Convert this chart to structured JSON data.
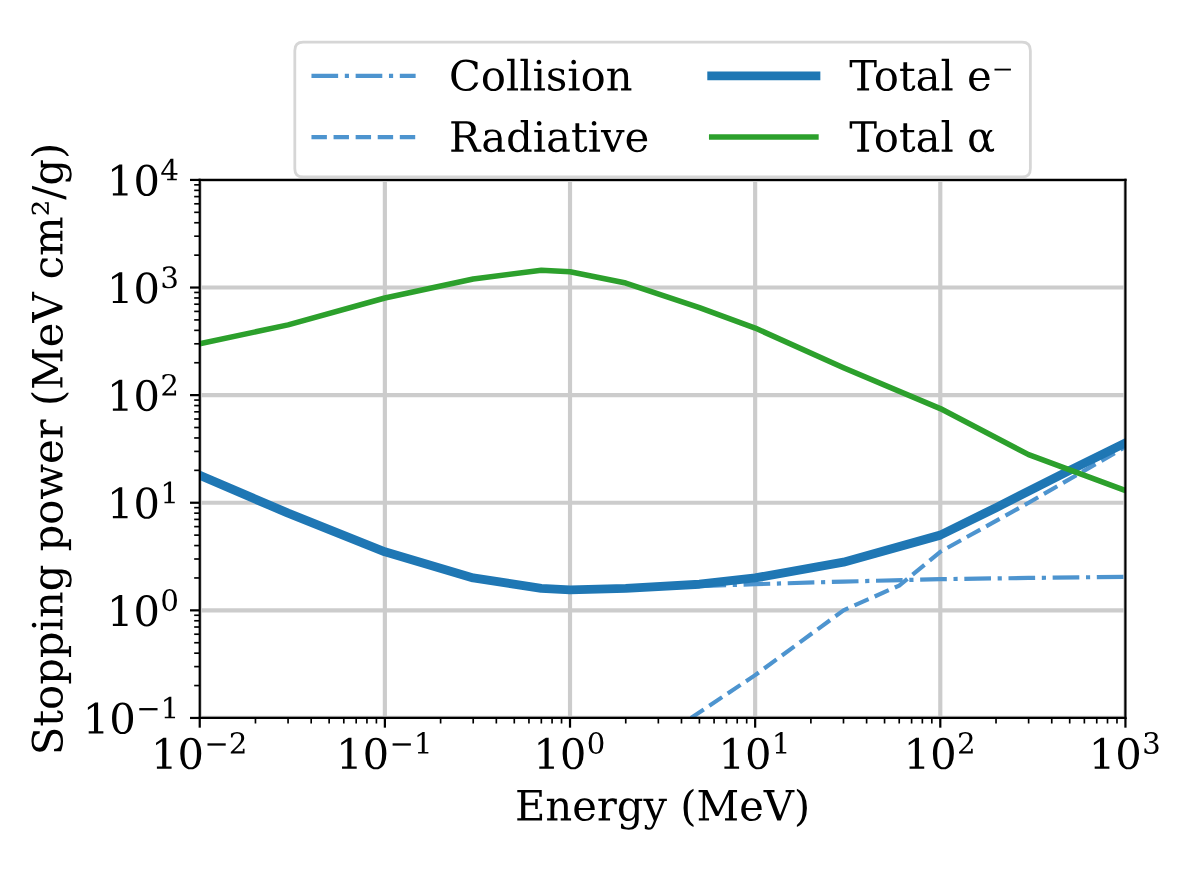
{
  "chart_data": {
    "type": "line",
    "xlabel": "Energy (MeV)",
    "ylabel": "Stopping power (MeV cm²/g)",
    "log": "xy",
    "grid": true,
    "legend": "top",
    "marker": "none",
    "xlim": [
      0.01,
      1000
    ],
    "ylim": [
      0.1,
      10000
    ],
    "xticks": [
      {
        "value": 0.01,
        "label": "10$^{−2}$"
      },
      {
        "value": 0.1,
        "label": "10$^{−1}$"
      },
      {
        "value": 1,
        "label": "10$^{0}$"
      },
      {
        "value": 10,
        "label": "10$^{1}$"
      },
      {
        "value": 100,
        "label": "10$^{2}$"
      },
      {
        "value": 1000,
        "label": "10$^{3}$"
      }
    ],
    "yticks": [
      {
        "value": 0.1,
        "label": "10$^{−1}$"
      },
      {
        "value": 1,
        "label": "10$^{0}$"
      },
      {
        "value": 10,
        "label": "10$^{1}$"
      },
      {
        "value": 100,
        "label": "10$^{2}$"
      },
      {
        "value": 1000,
        "label": "10$^{3}$"
      },
      {
        "value": 10000,
        "label": "10$^{4}$"
      }
    ],
    "series": [
      {
        "name": "Collision",
        "color": "#4d94cf",
        "line_style": "dashdot",
        "x": [
          5,
          10,
          30,
          100,
          300,
          1000
        ],
        "values": [
          1.68,
          1.75,
          1.85,
          1.95,
          2.0,
          2.05
        ]
      },
      {
        "name": "Radiative",
        "color": "#4d94cf",
        "line_style": "dashed",
        "x": [
          4.5,
          10,
          30,
          60,
          100,
          300,
          1000
        ],
        "values": [
          0.1,
          0.25,
          1.0,
          1.7,
          3.5,
          10,
          33
        ]
      },
      {
        "name": "Total e⁻",
        "color": "#1f77b4",
        "line_style": "solid",
        "x": [
          0.01,
          0.03,
          0.1,
          0.3,
          0.7,
          1,
          2,
          5,
          10,
          30,
          100,
          200,
          500,
          1000
        ],
        "values": [
          18,
          8,
          3.5,
          2.0,
          1.6,
          1.55,
          1.6,
          1.75,
          2.0,
          2.8,
          5,
          9,
          20,
          36
        ]
      },
      {
        "name": "Total α",
        "color": "#2ca02c",
        "line_style": "solid",
        "x": [
          0.01,
          0.03,
          0.1,
          0.3,
          0.7,
          1,
          2,
          5,
          10,
          30,
          100,
          300,
          1000
        ],
        "values": [
          300,
          450,
          800,
          1200,
          1450,
          1400,
          1100,
          650,
          420,
          180,
          75,
          28,
          13
        ]
      }
    ]
  }
}
